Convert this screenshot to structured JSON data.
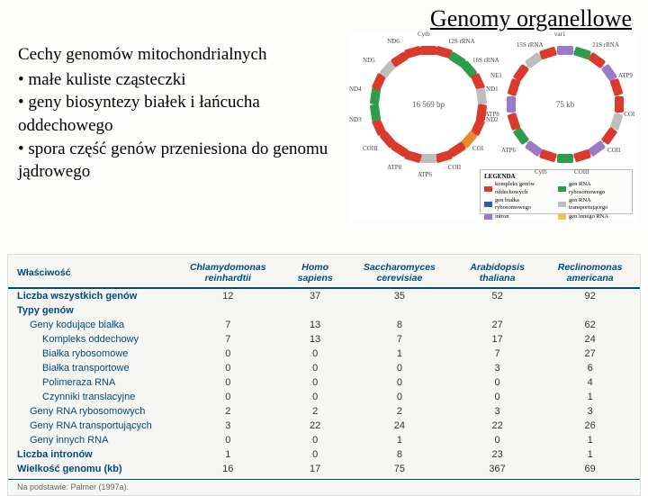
{
  "title": "Genomy organellowe",
  "text": {
    "subtitle": "Cechy genomów mitochondrialnych",
    "b1": "• małe kuliste cząsteczki",
    "b2": "• geny biosyntezy białek i łańcucha oddechowego",
    "b3": "• spora część genów przeniesiona do genomu jądrowego"
  },
  "plasmids": {
    "p1_center": "16 569 bp",
    "p2_center": "75 kb",
    "colors": {
      "red": "#d93a2b",
      "green": "#2e9c4a",
      "blue": "#2b5bb8",
      "purple": "#9b7bc9",
      "yellow": "#e8c84a",
      "orange": "#e88a2b",
      "grey": "#bdbdbd"
    },
    "legend": {
      "title": "LEGENDA",
      "items": [
        {
          "c": "#d93a2b",
          "t": "kompleks genów oddechowych"
        },
        {
          "c": "#2e9c4a",
          "t": "gen RNA rybosomowego"
        },
        {
          "c": "#2b5bb8",
          "t": "gen białka rybosomowego"
        },
        {
          "c": "#bdbdbd",
          "t": "gen RNA transportującego"
        },
        {
          "c": "#9b7bc9",
          "t": "intron"
        },
        {
          "c": "#e8c84a",
          "t": "gen innego RNA"
        }
      ]
    },
    "genes1": [
      "Cytb",
      "12S rRNA",
      "16S rRNA",
      "ND1",
      "ND2",
      "COI",
      "COII",
      "ATP6",
      "ATP8",
      "COIII",
      "ND3",
      "ND4",
      "ND5",
      "ND6"
    ],
    "genes2": [
      "var1",
      "21S rRNA",
      "ATP9",
      "COI",
      "COII",
      "COIII",
      "Cytb",
      "ATP6",
      "ATP8",
      "NE1",
      "15S rRNA"
    ]
  },
  "table": {
    "head": [
      "Właściwość",
      "Chlamydomonas reinhardtii",
      "Homo sapiens",
      "Saccharomyces cerevisiae",
      "Arabidopsis thaliana",
      "Reclinomonas americana"
    ],
    "rows": [
      {
        "cls": "sect rule",
        "cells": [
          "Liczba wszystkich genów",
          "12",
          "37",
          "35",
          "52",
          "92"
        ]
      },
      {
        "cls": "sect",
        "cells": [
          "Typy genów",
          "",
          "",
          "",
          "",
          ""
        ]
      },
      {
        "cls": "indent",
        "cells": [
          "Geny kodujące białka",
          "7",
          "13",
          "8",
          "27",
          "62"
        ]
      },
      {
        "cls": "indent2",
        "cells": [
          "Kompleks oddechowy",
          "7",
          "13",
          "7",
          "17",
          "24"
        ]
      },
      {
        "cls": "indent2",
        "cells": [
          "Białka rybosomowe",
          "0",
          "0",
          "1",
          "7",
          "27"
        ]
      },
      {
        "cls": "indent2",
        "cells": [
          "Białka transportowe",
          "0",
          "0",
          "0",
          "3",
          "6"
        ]
      },
      {
        "cls": "indent2",
        "cells": [
          "Polimeraza RNA",
          "0",
          "0",
          "0",
          "0",
          "4"
        ]
      },
      {
        "cls": "indent2",
        "cells": [
          "Czynniki translacyjne",
          "0",
          "0",
          "0",
          "0",
          "1"
        ]
      },
      {
        "cls": "indent",
        "cells": [
          "Geny RNA rybosomowych",
          "2",
          "2",
          "2",
          "3",
          "3"
        ]
      },
      {
        "cls": "indent",
        "cells": [
          "Geny RNA transportujących",
          "3",
          "22",
          "24",
          "22",
          "26"
        ]
      },
      {
        "cls": "indent",
        "cells": [
          "Geny innych RNA",
          "0",
          "0",
          "1",
          "0",
          "1"
        ]
      },
      {
        "cls": "sect",
        "cells": [
          "Liczba intronów",
          "1",
          "0",
          "8",
          "23",
          "1"
        ]
      },
      {
        "cls": "sect",
        "cells": [
          "Wielkość genomu (kb)",
          "16",
          "17",
          "75",
          "367",
          "69"
        ]
      }
    ],
    "note": "Na podstawie: Palmer (1997a)."
  }
}
